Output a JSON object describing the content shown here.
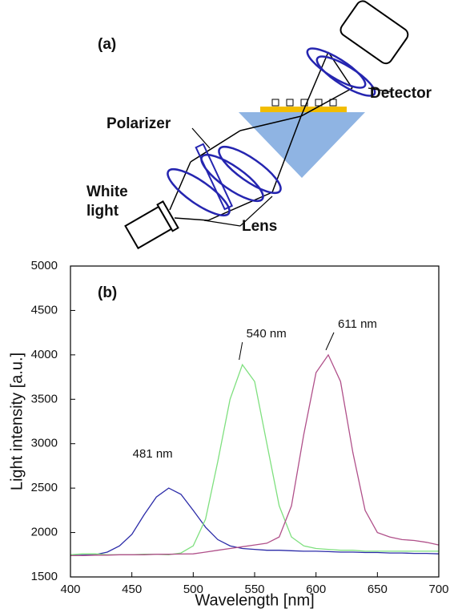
{
  "diagram": {
    "panel_label": "(a)",
    "labels": {
      "detector": "Detector",
      "polarizer": "Polarizer",
      "white_light": [
        "White",
        "light"
      ],
      "lens": "Lens"
    }
  },
  "chart_data": {
    "type": "line",
    "panel_label": "(b)",
    "x_label": "Wavelength [nm]",
    "y_label": "Light intensity [a.u.]",
    "x": [
      400,
      410,
      420,
      430,
      440,
      450,
      460,
      470,
      480,
      490,
      500,
      510,
      520,
      530,
      540,
      550,
      560,
      570,
      580,
      590,
      600,
      610,
      620,
      630,
      640,
      650,
      660,
      670,
      680,
      690,
      700
    ],
    "series": [
      {
        "name": "481 nm",
        "color": "#2b2ba8",
        "values": [
          1740,
          1745,
          1750,
          1780,
          1850,
          1980,
          2200,
          2400,
          2500,
          2430,
          2250,
          2060,
          1920,
          1850,
          1820,
          1810,
          1800,
          1800,
          1795,
          1790,
          1790,
          1785,
          1780,
          1780,
          1775,
          1775,
          1770,
          1770,
          1765,
          1765,
          1760
        ]
      },
      {
        "name": "540 nm",
        "color": "#7fe07f",
        "values": [
          1750,
          1760,
          1760,
          1750,
          1750,
          1750,
          1755,
          1755,
          1750,
          1770,
          1850,
          2150,
          2800,
          3500,
          3890,
          3700,
          3000,
          2300,
          1950,
          1850,
          1820,
          1810,
          1800,
          1800,
          1790,
          1790,
          1790,
          1790,
          1790,
          1790,
          1790
        ]
      },
      {
        "name": "611 nm",
        "color": "#b0508a",
        "values": [
          1740,
          1740,
          1745,
          1745,
          1750,
          1750,
          1750,
          1755,
          1755,
          1758,
          1760,
          1780,
          1800,
          1820,
          1840,
          1860,
          1880,
          1950,
          2300,
          3100,
          3800,
          4000,
          3700,
          2900,
          2250,
          2000,
          1950,
          1920,
          1910,
          1890,
          1860
        ]
      }
    ],
    "xlim": [
      400,
      700
    ],
    "xticks": [
      400,
      450,
      500,
      550,
      600,
      650,
      700
    ],
    "ylim": [
      1500,
      5000
    ],
    "yticks": [
      1500,
      2000,
      2500,
      3000,
      3500,
      4000,
      4500,
      5000
    ]
  }
}
